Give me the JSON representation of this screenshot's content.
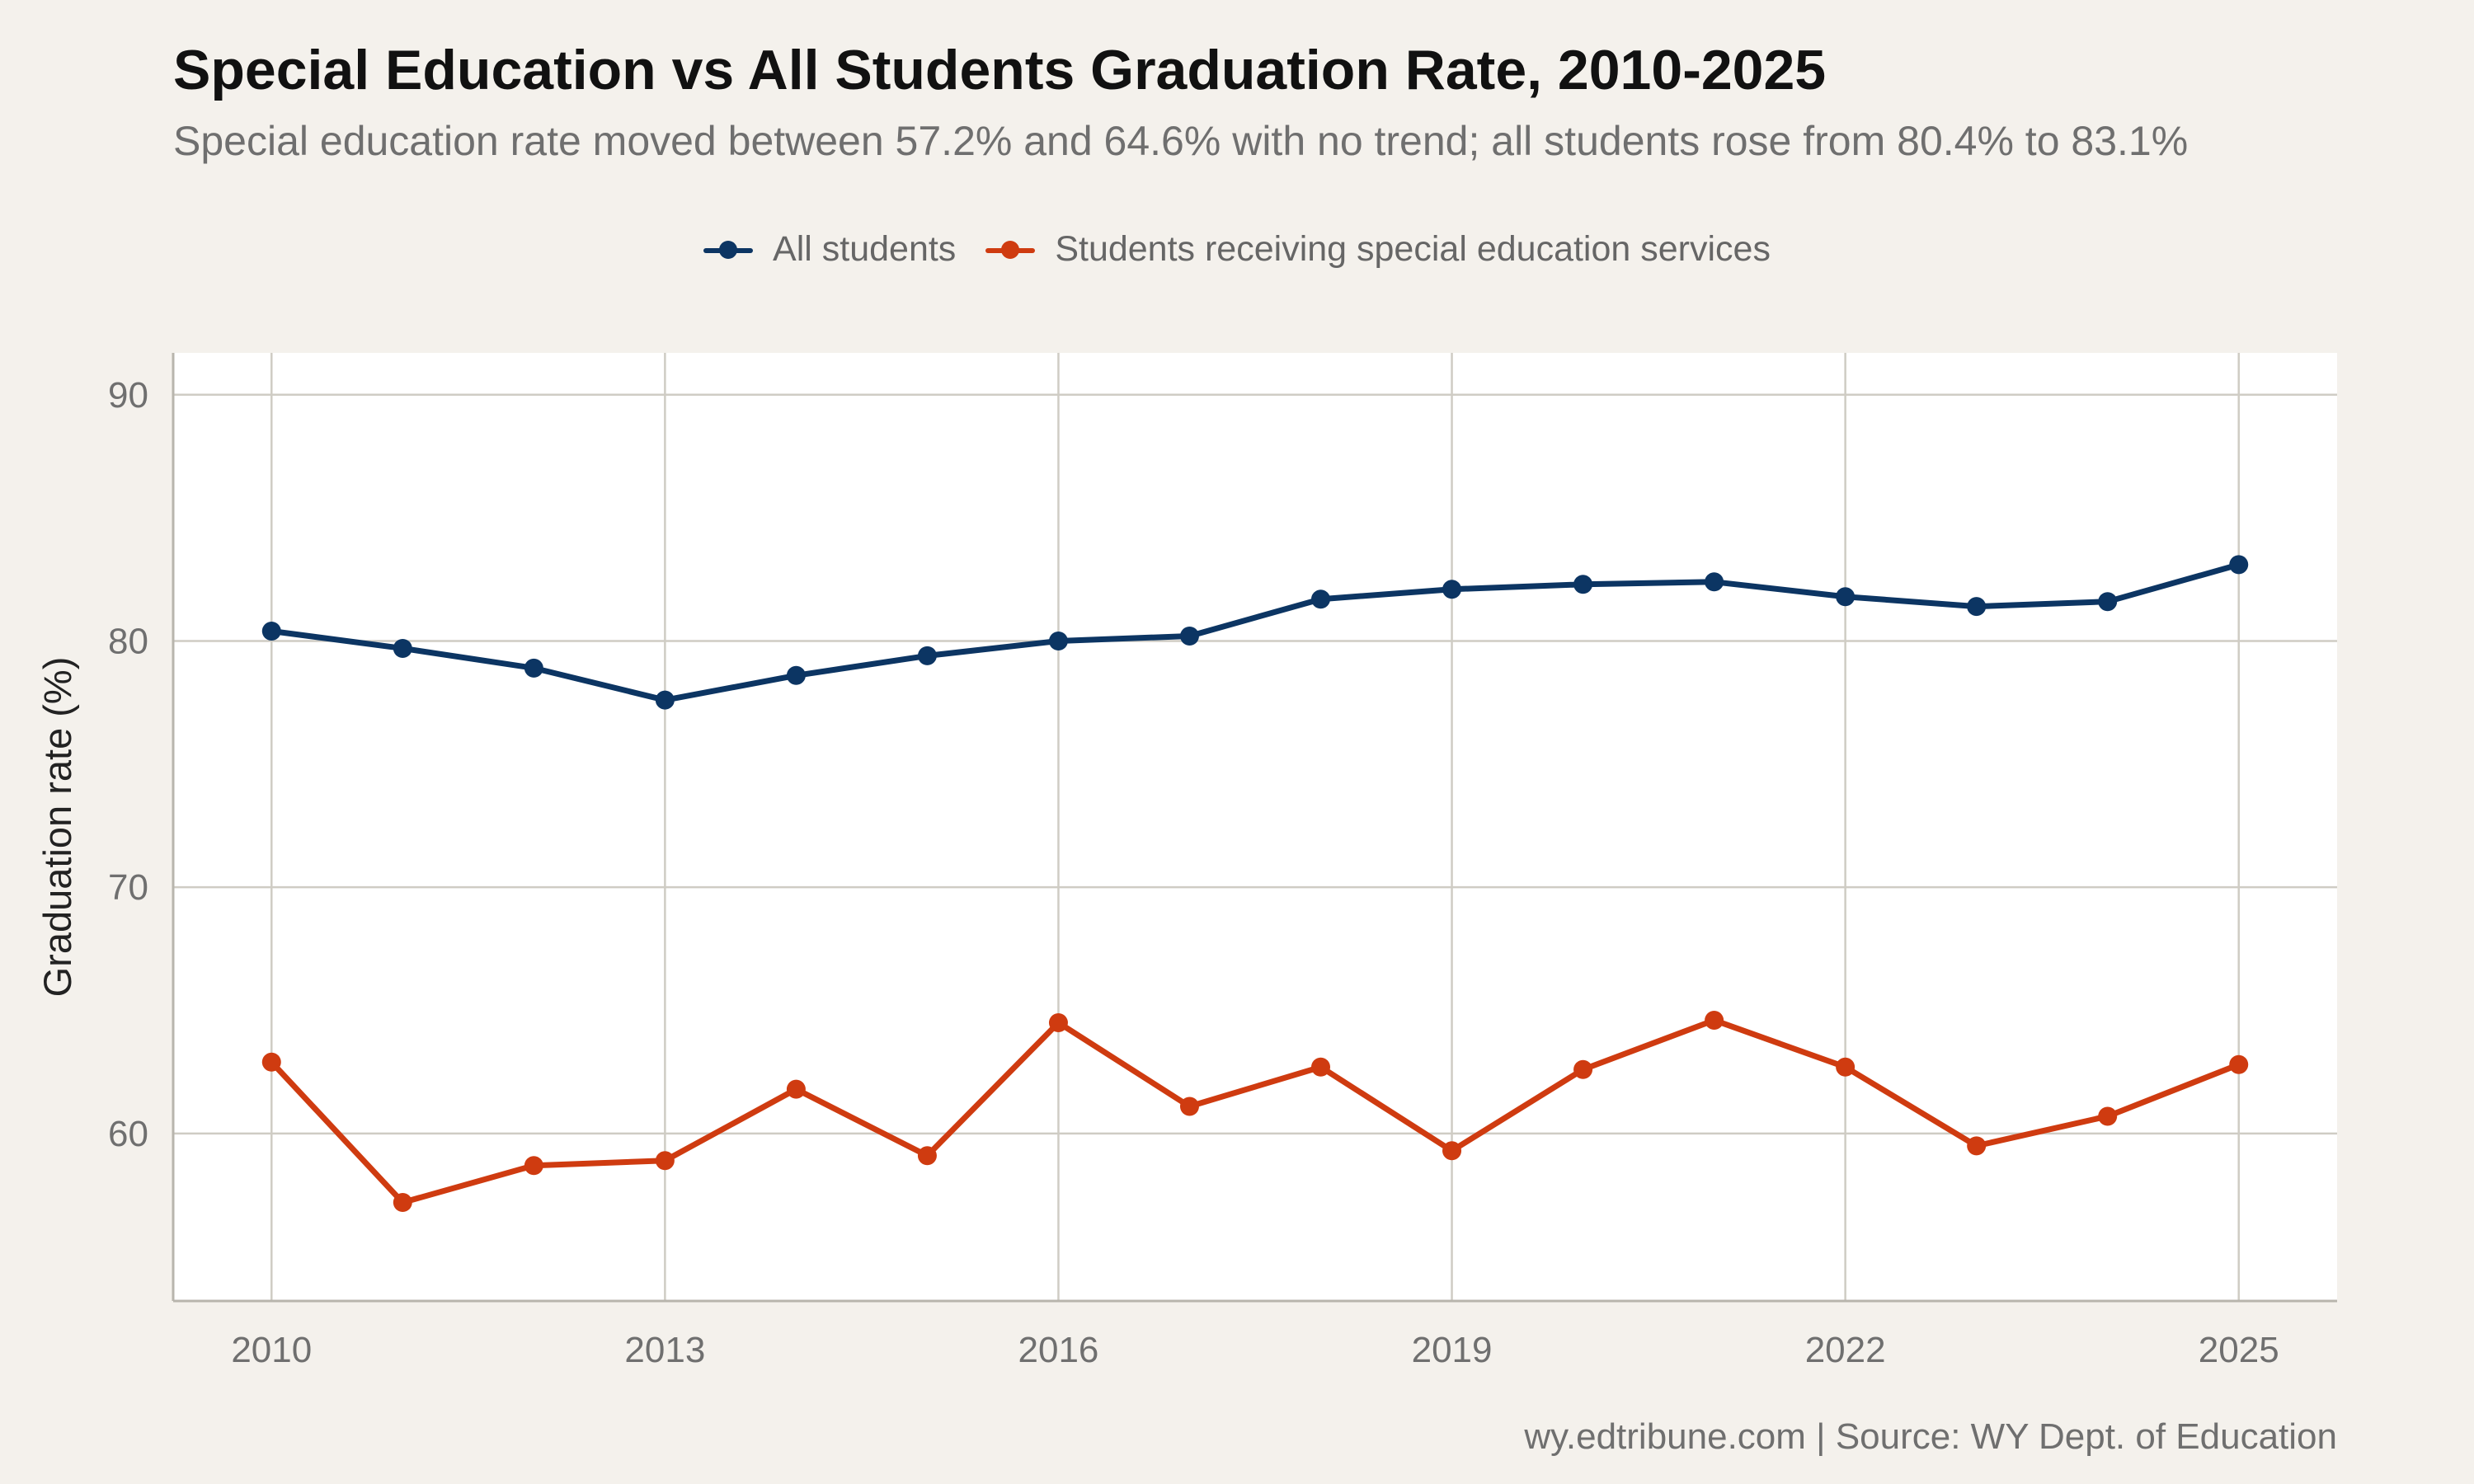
{
  "title": "Special Education vs All Students Graduation Rate, 2010-2025",
  "subtitle": "Special education rate moved between 57.2% and 64.6% with no trend; all students rose from 80.4% to 83.1%",
  "caption": "wy.edtribune.com | Source: WY Dept. of Education",
  "legend": [
    {
      "label": "All students",
      "color": "#0c3563"
    },
    {
      "label": "Students receiving special education services",
      "color": "#cf3b10"
    }
  ],
  "chart_data": {
    "type": "line",
    "title": "Special Education vs All Students Graduation Rate, 2010-2025",
    "subtitle": "Special education rate moved between 57.2% and 64.6% with no trend; all students rose from 80.4% to 83.1%",
    "xlabel": "",
    "ylabel": "Graduation rate (%)",
    "x": [
      2010,
      2011,
      2012,
      2013,
      2014,
      2015,
      2016,
      2017,
      2018,
      2019,
      2020,
      2021,
      2022,
      2023,
      2024,
      2025
    ],
    "xticks": [
      "2010",
      "2013",
      "2016",
      "2019",
      "2022",
      "2025"
    ],
    "yticks": [
      "60",
      "70",
      "80",
      "90"
    ],
    "xlim": [
      2009.25,
      2025.75
    ],
    "ylim": [
      53.2,
      91.7
    ],
    "grid": true,
    "legend_position": "top",
    "series": [
      {
        "name": "All students",
        "color": "#0c3563",
        "values": [
          80.4,
          79.7,
          78.9,
          77.6,
          78.6,
          79.4,
          80.0,
          80.2,
          81.7,
          82.1,
          82.3,
          82.4,
          81.8,
          81.4,
          81.6,
          83.1
        ]
      },
      {
        "name": "Students receiving special education services",
        "color": "#cf3b10",
        "values": [
          62.9,
          57.2,
          58.7,
          58.9,
          61.8,
          59.1,
          64.5,
          61.1,
          62.7,
          59.3,
          62.6,
          64.6,
          62.7,
          59.5,
          60.7,
          62.8
        ]
      }
    ]
  }
}
